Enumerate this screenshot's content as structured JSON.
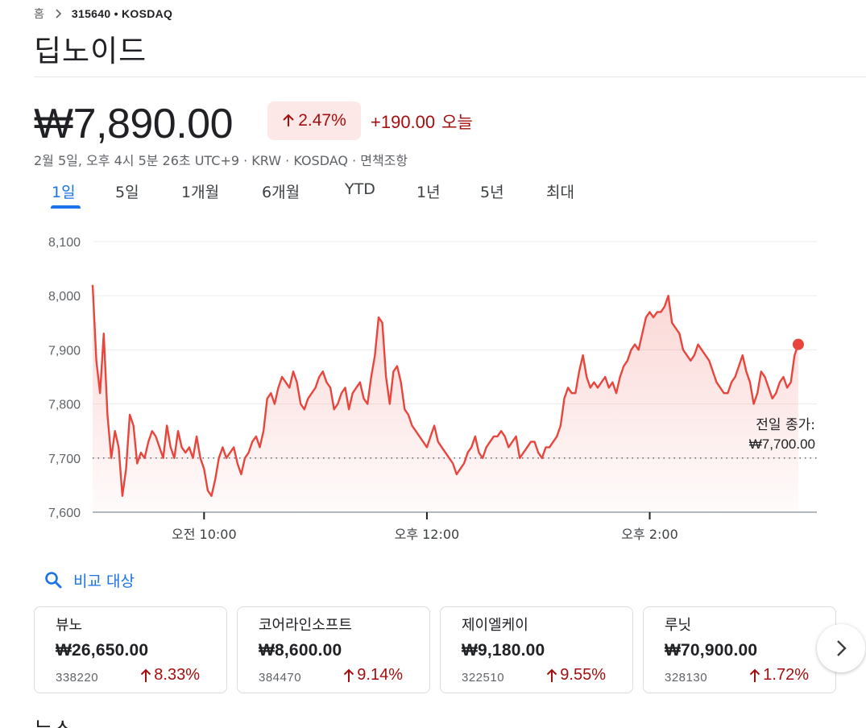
{
  "breadcrumb": {
    "home": "홈",
    "ticker": "315640 • KOSDAQ"
  },
  "company_name": "딥노이드",
  "quote": {
    "price": "₩7,890.00",
    "percent": "2.47%",
    "change": "+190.00",
    "today": "오늘",
    "meta": "2월 5일, 오후 4시 5분 26초 UTC+9 · KRW · KOSDAQ · 면책조항"
  },
  "tabs": [
    "1일",
    "5일",
    "1개월",
    "6개월",
    "YTD",
    "1년",
    "5년",
    "최대"
  ],
  "active_tab": 0,
  "colors": {
    "accent": "#1a73e8",
    "down_red": "#a50e0e",
    "line": "#e8453c"
  },
  "chart_data": {
    "type": "line",
    "title": "",
    "xlabel": "",
    "ylabel": "",
    "y_ticks": [
      "8,100",
      "8,000",
      "7,900",
      "7,800",
      "7,700",
      "7,600"
    ],
    "y_tick_values": [
      8100,
      8000,
      7900,
      7800,
      7700,
      7600
    ],
    "x_ticks": [
      "오전 10:00",
      "오후 12:00",
      "오후 2:00"
    ],
    "x_tick_values": [
      "10:00",
      "12:00",
      "14:00"
    ],
    "x_range": [
      "09:00",
      "15:30"
    ],
    "ylim": [
      7600,
      8100
    ],
    "grid": true,
    "previous_close": {
      "label_line1": "전일 종가:",
      "label_line2": "₩7,700.00",
      "value": 7700
    },
    "series": [
      {
        "x": [
          "09:00",
          "09:02",
          "09:04",
          "09:06",
          "09:08",
          "09:10",
          "09:12",
          "09:14",
          "09:16",
          "09:18",
          "09:20",
          "09:22",
          "09:24",
          "09:26",
          "09:28",
          "09:30",
          "09:32",
          "09:34",
          "09:36",
          "09:38",
          "09:40",
          "09:42",
          "09:44",
          "09:46",
          "09:48",
          "09:50",
          "09:52",
          "09:54",
          "09:56",
          "09:58",
          "10:00",
          "10:02",
          "10:04",
          "10:06",
          "10:08",
          "10:10",
          "10:12",
          "10:14",
          "10:16",
          "10:18",
          "10:20",
          "10:22",
          "10:24",
          "10:26",
          "10:28",
          "10:30",
          "10:32",
          "10:34",
          "10:36",
          "10:38",
          "10:40",
          "10:42",
          "10:44",
          "10:46",
          "10:48",
          "10:50",
          "10:52",
          "10:54",
          "10:56",
          "10:58",
          "11:00",
          "11:02",
          "11:04",
          "11:06",
          "11:08",
          "11:10",
          "11:12",
          "11:14",
          "11:16",
          "11:18",
          "11:20",
          "11:22",
          "11:24",
          "11:26",
          "11:28",
          "11:30",
          "11:32",
          "11:34",
          "11:36",
          "11:38",
          "11:40",
          "11:42",
          "11:44",
          "11:46",
          "11:48",
          "11:50",
          "11:52",
          "11:54",
          "11:56",
          "11:58",
          "12:00",
          "12:02",
          "12:04",
          "12:06",
          "12:08",
          "12:10",
          "12:12",
          "12:14",
          "12:16",
          "12:18",
          "12:20",
          "12:22",
          "12:24",
          "12:26",
          "12:28",
          "12:30",
          "12:32",
          "12:34",
          "12:36",
          "12:38",
          "12:40",
          "12:42",
          "12:44",
          "12:46",
          "12:48",
          "12:50",
          "12:52",
          "12:54",
          "12:56",
          "12:58",
          "13:00",
          "13:02",
          "13:04",
          "13:06",
          "13:08",
          "13:10",
          "13:12",
          "13:14",
          "13:16",
          "13:18",
          "13:20",
          "13:22",
          "13:24",
          "13:26",
          "13:28",
          "13:30",
          "13:32",
          "13:34",
          "13:36",
          "13:38",
          "13:40",
          "13:42",
          "13:44",
          "13:46",
          "13:48",
          "13:50",
          "13:52",
          "13:54",
          "13:56",
          "13:58",
          "14:00",
          "14:02",
          "14:04",
          "14:06",
          "14:08",
          "14:10",
          "14:12",
          "14:14",
          "14:16",
          "14:18",
          "14:20",
          "14:22",
          "14:24",
          "14:26",
          "14:28",
          "14:30",
          "14:32",
          "14:34",
          "14:36",
          "14:38",
          "14:40",
          "14:42",
          "14:44",
          "14:46",
          "14:48",
          "14:50",
          "14:52",
          "14:54",
          "14:56",
          "14:58",
          "15:00",
          "15:02",
          "15:04",
          "15:06",
          "15:08",
          "15:10",
          "15:12",
          "15:14",
          "15:16",
          "15:18",
          "15:20"
        ],
        "values": [
          8020,
          7880,
          7820,
          7930,
          7780,
          7700,
          7750,
          7720,
          7630,
          7680,
          7780,
          7760,
          7690,
          7710,
          7700,
          7730,
          7750,
          7740,
          7720,
          7700,
          7760,
          7720,
          7700,
          7750,
          7720,
          7710,
          7720,
          7700,
          7740,
          7700,
          7680,
          7640,
          7630,
          7660,
          7700,
          7720,
          7700,
          7710,
          7720,
          7690,
          7670,
          7700,
          7710,
          7730,
          7740,
          7720,
          7750,
          7810,
          7820,
          7800,
          7830,
          7850,
          7840,
          7830,
          7860,
          7840,
          7800,
          7790,
          7810,
          7820,
          7830,
          7850,
          7860,
          7840,
          7830,
          7790,
          7800,
          7820,
          7830,
          7790,
          7820,
          7830,
          7840,
          7810,
          7800,
          7850,
          7890,
          7960,
          7950,
          7850,
          7800,
          7860,
          7870,
          7840,
          7790,
          7780,
          7760,
          7750,
          7740,
          7730,
          7720,
          7740,
          7760,
          7730,
          7720,
          7710,
          7700,
          7690,
          7670,
          7680,
          7690,
          7710,
          7720,
          7740,
          7710,
          7700,
          7720,
          7730,
          7740,
          7740,
          7750,
          7740,
          7720,
          7730,
          7740,
          7700,
          7710,
          7720,
          7730,
          7730,
          7710,
          7700,
          7720,
          7720,
          7730,
          7740,
          7760,
          7810,
          7830,
          7820,
          7820,
          7860,
          7890,
          7850,
          7830,
          7840,
          7830,
          7840,
          7850,
          7830,
          7840,
          7820,
          7850,
          7870,
          7880,
          7900,
          7910,
          7900,
          7930,
          7960,
          7970,
          7960,
          7970,
          7970,
          7980,
          8000,
          7950,
          7940,
          7930,
          7900,
          7890,
          7880,
          7890,
          7910,
          7900,
          7890,
          7880,
          7860,
          7840,
          7830,
          7820,
          7820,
          7840,
          7850,
          7870,
          7890,
          7860,
          7840,
          7800,
          7820,
          7860,
          7850,
          7830,
          7810,
          7820,
          7840,
          7850,
          7830,
          7840,
          7890,
          7910
        ]
      }
    ]
  },
  "compare": {
    "label": "비교 대상"
  },
  "related": [
    {
      "name": "뷰노",
      "price": "₩26,650.00",
      "code": "338220",
      "pct": "8.33%"
    },
    {
      "name": "코어라인소프트",
      "price": "₩8,600.00",
      "code": "384470",
      "pct": "9.14%"
    },
    {
      "name": "제이엘케이",
      "price": "₩9,180.00",
      "code": "322510",
      "pct": "9.55%"
    },
    {
      "name": "루닛",
      "price": "₩70,900.00",
      "code": "328130",
      "pct": "1.72%"
    }
  ],
  "news_heading": "뉴스"
}
